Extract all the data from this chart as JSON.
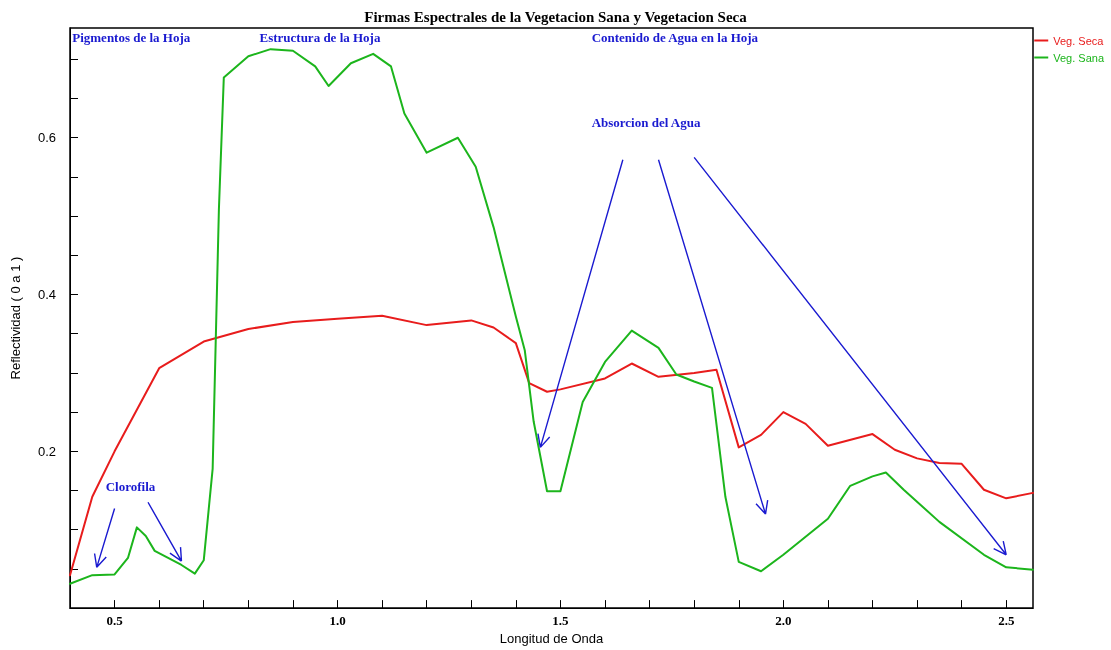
{
  "chart_data": {
    "type": "line",
    "title": "Firmas Espectrales de la Vegetacion Sana y Vegetacion Seca",
    "xlabel": "Longitud de Onda",
    "ylabel": "Reflectividad ( 0 a 1 )",
    "annotations": [
      "Pigmentos de la Hoja",
      "Estructura de la Hoja",
      "Contenido de Agua en la Hoja",
      "Absorcion del Agua",
      "Clorofila"
    ],
    "xlim": [
      0.4,
      2.56
    ],
    "ylim": [
      0,
      0.74
    ],
    "xticks": [
      {
        "value": 0.5,
        "label": "0.5"
      },
      {
        "value": 0.6,
        "label": null
      },
      {
        "value": 0.7,
        "label": null
      },
      {
        "value": 0.8,
        "label": null
      },
      {
        "value": 0.9,
        "label": null
      },
      {
        "value": 1,
        "label": "1.0"
      },
      {
        "value": 1.1,
        "label": null
      },
      {
        "value": 1.2,
        "label": null
      },
      {
        "value": 1.3,
        "label": null
      },
      {
        "value": 1.4,
        "label": null
      },
      {
        "value": 1.5,
        "label": "1.5"
      },
      {
        "value": 1.6,
        "label": null
      },
      {
        "value": 1.7,
        "label": null
      },
      {
        "value": 1.8,
        "label": null
      },
      {
        "value": 1.9,
        "label": null
      },
      {
        "value": 2,
        "label": "2.0"
      },
      {
        "value": 2.1,
        "label": null
      },
      {
        "value": 2.2,
        "label": null
      },
      {
        "value": 2.3,
        "label": null
      },
      {
        "value": 2.4,
        "label": null
      },
      {
        "value": 2.5,
        "label": "2.5"
      }
    ],
    "yticks": [
      {
        "value": 0.05,
        "label": null
      },
      {
        "value": 0.1,
        "label": null
      },
      {
        "value": 0.15,
        "label": null
      },
      0.2,
      {
        "value": 0.25,
        "label": null
      },
      {
        "value": 0.3,
        "label": null
      },
      {
        "value": 0.35,
        "label": null
      },
      0.4,
      {
        "value": 0.45,
        "label": null
      },
      {
        "value": 0.5,
        "label": null
      },
      {
        "value": 0.55,
        "label": null
      },
      0.6,
      {
        "value": 0.65,
        "label": null
      },
      {
        "value": 0.7,
        "label": null
      }
    ],
    "grid": false,
    "legend": "top right",
    "series": [
      {
        "name": "Veg. Seca",
        "color": "#e81c1c",
        "x": [
          0.4,
          0.45,
          0.5,
          0.6,
          0.7,
          0.8,
          0.9,
          1.0,
          1.1,
          1.2,
          1.3,
          1.35,
          1.4,
          1.43,
          1.47,
          1.5,
          1.6,
          1.66,
          1.72,
          1.8,
          1.85,
          1.9,
          1.95,
          2.0,
          2.05,
          2.1,
          2.2,
          2.25,
          2.3,
          2.35,
          2.4,
          2.45,
          2.5,
          2.56
        ],
        "values": [
          0.042,
          0.142,
          0.2,
          0.306,
          0.34,
          0.356,
          0.365,
          0.369,
          0.373,
          0.361,
          0.367,
          0.358,
          0.338,
          0.287,
          0.276,
          0.279,
          0.293,
          0.312,
          0.295,
          0.3,
          0.304,
          0.205,
          0.221,
          0.25,
          0.235,
          0.207,
          0.222,
          0.202,
          0.191,
          0.185,
          0.184,
          0.151,
          0.14,
          0.147
        ]
      },
      {
        "name": "Veg. Sana",
        "color": "#1cb51c",
        "x": [
          0.4,
          0.45,
          0.5,
          0.53,
          0.55,
          0.57,
          0.59,
          0.65,
          0.68,
          0.7,
          0.72,
          0.734,
          0.745,
          0.8,
          0.85,
          0.9,
          0.95,
          0.98,
          1.03,
          1.08,
          1.12,
          1.15,
          1.2,
          1.27,
          1.31,
          1.35,
          1.4,
          1.42,
          1.44,
          1.47,
          1.5,
          1.55,
          1.6,
          1.66,
          1.72,
          1.76,
          1.8,
          1.84,
          1.87,
          1.9,
          1.95,
          2.0,
          2.1,
          2.15,
          2.2,
          2.23,
          2.27,
          2.35,
          2.45,
          2.5,
          2.56
        ],
        "values": [
          0.031,
          0.042,
          0.043,
          0.064,
          0.103,
          0.092,
          0.073,
          0.055,
          0.044,
          0.061,
          0.178,
          0.509,
          0.677,
          0.704,
          0.713,
          0.711,
          0.691,
          0.666,
          0.695,
          0.707,
          0.691,
          0.631,
          0.581,
          0.6,
          0.563,
          0.486,
          0.372,
          0.329,
          0.238,
          0.149,
          0.149,
          0.263,
          0.314,
          0.354,
          0.332,
          0.298,
          0.289,
          0.281,
          0.142,
          0.059,
          0.047,
          0.068,
          0.114,
          0.156,
          0.168,
          0.173,
          0.151,
          0.11,
          0.068,
          0.052,
          0.049
        ]
      }
    ]
  }
}
